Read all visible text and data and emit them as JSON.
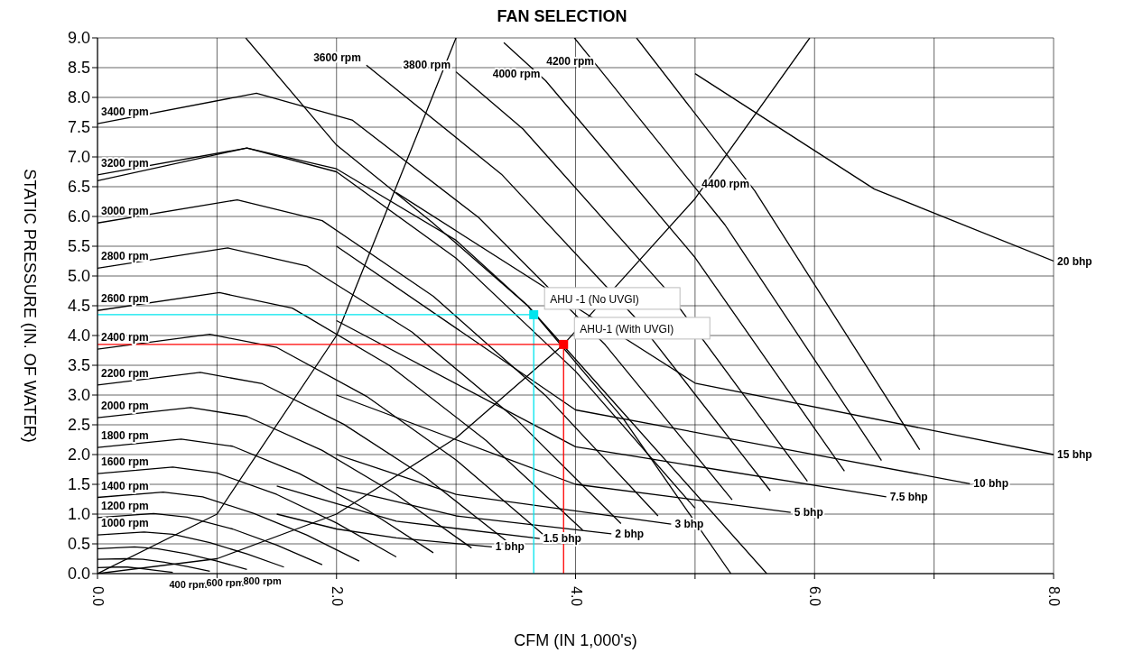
{
  "chart_data": {
    "type": "line",
    "title": "FAN SELECTION",
    "xlabel": "CFM (IN 1,000's)",
    "ylabel": "STATIC PRESSURE (IN. OF WATER)",
    "xlim": [
      0,
      8
    ],
    "ylim": [
      0,
      9
    ],
    "xticks": [
      {
        "value": 0,
        "label": "0.0"
      },
      {
        "value": 1,
        "label": null
      },
      {
        "value": 2,
        "label": "2.0"
      },
      {
        "value": 3,
        "label": null
      },
      {
        "value": 4,
        "label": "4.0"
      },
      {
        "value": 5,
        "label": null
      },
      {
        "value": 6,
        "label": "6.0"
      },
      {
        "value": 7,
        "label": null
      },
      {
        "value": 8,
        "label": "8.0"
      }
    ],
    "yticks": [
      {
        "value": 0,
        "label": "0.0"
      },
      0.5,
      {
        "value": 1,
        "label": "1.0"
      },
      1.5,
      {
        "value": 2,
        "label": "2.0"
      },
      2.5,
      {
        "value": 3,
        "label": "3.0"
      },
      3.5,
      {
        "value": 4,
        "label": "4.0"
      },
      4.5,
      {
        "value": 5,
        "label": "5.0"
      },
      5.5,
      {
        "value": 6,
        "label": "6.0"
      },
      6.5,
      {
        "value": 7,
        "label": "7.0"
      },
      7.5,
      {
        "value": 8,
        "label": "8.0"
      },
      8.5,
      {
        "value": 9,
        "label": "9.0"
      }
    ],
    "grid": true,
    "annotations": [
      {
        "text": "AHU -1 (No UVGI)",
        "x": 3.65,
        "y": 4.35
      },
      {
        "text": "AHU-1 (With UVGI)",
        "x": 3.9,
        "y": 3.85
      }
    ],
    "series": [
      {
        "name": "400 rpm",
        "color": "#000000",
        "x": [
          0,
          0.16,
          0.25,
          0.38,
          0.5,
          0.63
        ],
        "values": [
          0.1,
          0.11,
          0.11,
          0.08,
          0.05,
          0.02
        ]
      },
      {
        "name": "600 rpm",
        "color": "#000000",
        "x": [
          0,
          0.23,
          0.38,
          0.56,
          0.75,
          0.94
        ],
        "values": [
          0.24,
          0.25,
          0.24,
          0.19,
          0.12,
          0.04
        ]
      },
      {
        "name": "800 rpm",
        "color": "#000000",
        "x": [
          0,
          0.31,
          0.5,
          0.75,
          1,
          1.25
        ],
        "values": [
          0.42,
          0.45,
          0.42,
          0.33,
          0.21,
          0.07
        ]
      },
      {
        "name": "1000 rpm",
        "color": "#000000",
        "x": [
          0,
          0.39,
          0.63,
          0.94,
          1.25,
          1.56
        ],
        "values": [
          0.65,
          0.7,
          0.66,
          0.52,
          0.33,
          0.11
        ]
      },
      {
        "name": "1200 rpm",
        "color": "#000000",
        "x": [
          0,
          0.47,
          0.75,
          1.13,
          1.5,
          1.88
        ],
        "values": [
          0.94,
          1.01,
          0.95,
          0.75,
          0.48,
          0.15
        ]
      },
      {
        "name": "1400 rpm",
        "color": "#000000",
        "x": [
          0,
          0.55,
          0.88,
          1.31,
          1.75,
          2.19
        ],
        "values": [
          1.28,
          1.37,
          1.29,
          1.01,
          0.65,
          0.21
        ]
      },
      {
        "name": "1600 rpm",
        "color": "#000000",
        "x": [
          0,
          0.63,
          1,
          1.5,
          2,
          2.5
        ],
        "values": [
          1.68,
          1.79,
          1.69,
          1.33,
          0.85,
          0.28
        ]
      },
      {
        "name": "1800 rpm",
        "color": "#000000",
        "x": [
          0,
          0.7,
          1.13,
          1.69,
          2.25,
          2.81
        ],
        "values": [
          2.12,
          2.26,
          2.14,
          1.68,
          1.08,
          0.35
        ]
      },
      {
        "name": "2000 rpm",
        "color": "#000000",
        "x": [
          0,
          0.78,
          1.25,
          1.88,
          2.5,
          3.13
        ],
        "values": [
          2.62,
          2.79,
          2.64,
          2.07,
          1.33,
          0.43
        ]
      },
      {
        "name": "2200 rpm",
        "color": "#000000",
        "x": [
          0,
          0.86,
          1.38,
          2.06,
          2.75,
          3.44
        ],
        "values": [
          3.17,
          3.38,
          3.19,
          2.51,
          1.61,
          0.52
        ]
      },
      {
        "name": "2400 rpm",
        "color": "#000000",
        "x": [
          0,
          0.94,
          1.5,
          2.25,
          3,
          3.75
        ],
        "values": [
          3.77,
          4.02,
          3.8,
          2.98,
          1.91,
          0.62
        ]
      },
      {
        "name": "2600 rpm",
        "color": "#000000",
        "x": [
          0,
          1.02,
          1.63,
          2.44,
          3.25,
          4.06
        ],
        "values": [
          4.42,
          4.72,
          4.46,
          3.5,
          2.24,
          0.73
        ]
      },
      {
        "name": "2800 rpm",
        "color": "#000000",
        "x": [
          0,
          1.09,
          1.75,
          2.63,
          3.5,
          4.38
        ],
        "values": [
          5.13,
          5.47,
          5.17,
          4.06,
          2.6,
          0.84
        ]
      },
      {
        "name": "3000 rpm",
        "color": "#000000",
        "x": [
          0,
          1.17,
          1.88,
          2.81,
          3.75,
          4.69
        ],
        "values": [
          5.89,
          6.28,
          5.93,
          4.66,
          2.99,
          0.97
        ]
      },
      {
        "name": "3200 rpm",
        "color": "#000000",
        "x": [
          0,
          1.25,
          2,
          3,
          4,
          5
        ],
        "values": [
          6.7,
          7.15,
          6.75,
          5.3,
          3.4,
          1.1
        ]
      },
      {
        "name": "3400 rpm",
        "color": "#000000",
        "x": [
          0,
          1.33,
          2.13,
          3.19,
          4.25,
          5.31
        ],
        "values": [
          7.56,
          8.07,
          7.62,
          5.98,
          3.84,
          1.24
        ]
      },
      {
        "name": "3600 rpm",
        "color": "#000000",
        "x": [
          2.25,
          3.38,
          4.5,
          5.63
        ],
        "values": [
          8.54,
          6.71,
          4.3,
          1.39
        ]
      },
      {
        "name": "3800 rpm",
        "color": "#000000",
        "x": [
          3,
          3.56,
          4.75,
          5.94
        ],
        "values": [
          8.43,
          7.47,
          4.79,
          1.55
        ]
      },
      {
        "name": "4000 rpm",
        "color": "#000000",
        "x": [
          3.4,
          3.75,
          5,
          6.25
        ],
        "values": [
          8.92,
          8.28,
          5.31,
          1.72
        ]
      },
      {
        "name": "4200 rpm",
        "color": "#000000",
        "x": [
          3.99,
          4.2,
          5.25,
          6.56
        ],
        "values": [
          9,
          8.48,
          5.86,
          1.9
        ]
      },
      {
        "name": "4400 rpm",
        "color": "#000000",
        "x": [
          4.51,
          5.5,
          6.88
        ],
        "values": [
          9,
          6.43,
          2.08
        ]
      },
      {
        "name": "1 bhp",
        "color": "#000000",
        "x": [
          3.3,
          2.5,
          2,
          1.5
        ],
        "values": [
          0.45,
          0.6,
          0.75,
          1
        ]
      },
      {
        "name": "1.5 bhp",
        "color": "#000000",
        "x": [
          3.7,
          2.5,
          1.5
        ],
        "values": [
          0.59,
          0.88,
          1.47
        ]
      },
      {
        "name": "2 bhp",
        "color": "#000000",
        "x": [
          4.3,
          3,
          2
        ],
        "values": [
          0.67,
          0.97,
          1.45
        ]
      },
      {
        "name": "3 bhp",
        "color": "#000000",
        "x": [
          4.8,
          3,
          2
        ],
        "values": [
          0.83,
          1.33,
          2
        ]
      },
      {
        "name": "5 bhp",
        "color": "#000000",
        "x": [
          5.8,
          4,
          2
        ],
        "values": [
          1.03,
          1.5,
          3
        ]
      },
      {
        "name": "7.5 bhp",
        "color": "#000000",
        "x": [
          6.6,
          4,
          2
        ],
        "values": [
          1.29,
          2.13,
          4.25
        ]
      },
      {
        "name": "10 bhp",
        "color": "#000000",
        "x": [
          7.3,
          4,
          2
        ],
        "values": [
          1.51,
          2.75,
          5.5
        ]
      },
      {
        "name": "15 bhp",
        "color": "#000000",
        "x": [
          8,
          5,
          2.5
        ],
        "values": [
          2,
          3.2,
          6.4
        ]
      },
      {
        "name": "20 bhp",
        "color": "#000000",
        "x": [
          8,
          6.5,
          5
        ],
        "values": [
          5.25,
          6.46,
          8.4
        ]
      },
      {
        "color": "#000000",
        "x": [
          1.24,
          2,
          2.8,
          3.6,
          4.4,
          5.3
        ],
        "values": [
          9,
          7.2,
          5.9,
          4.5,
          2.6,
          0
        ]
      },
      {
        "color": "#000000",
        "x": [
          0,
          1.25,
          2,
          3,
          3.6,
          4.4,
          5.6
        ],
        "values": [
          6.6,
          7.15,
          6.8,
          5.6,
          4.5,
          2.7,
          0
        ]
      },
      {
        "color": "#000000",
        "x": [
          0,
          1,
          2,
          3,
          3.9,
          5,
          5.96
        ],
        "values": [
          0,
          0.25,
          1,
          2.28,
          3.85,
          6.3,
          9
        ]
      },
      {
        "color": "#000000",
        "x": [
          0,
          1,
          2,
          3
        ],
        "values": [
          0,
          1,
          4,
          9
        ]
      },
      {
        "color": "#00e5ee",
        "x": [
          0,
          3.65,
          3.65
        ],
        "values": [
          4.35,
          4.35,
          0
        ]
      },
      {
        "color": "#ff0000",
        "x": [
          0,
          3.9,
          3.9
        ],
        "values": [
          3.85,
          3.85,
          0
        ]
      },
      {
        "type": "scatter",
        "color": "#00e5ee",
        "x": [
          3.65
        ],
        "values": [
          4.35
        ]
      },
      {
        "type": "scatter",
        "color": "#ff0000",
        "x": [
          3.9
        ],
        "values": [
          3.85
        ]
      }
    ]
  }
}
